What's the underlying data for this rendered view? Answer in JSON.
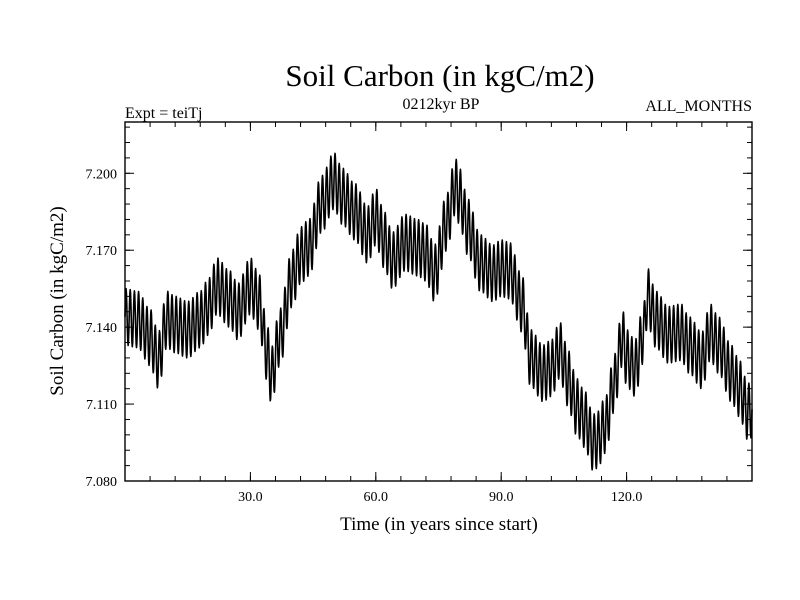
{
  "chart_data": {
    "type": "line",
    "title": "Soil Carbon (in kgC/m2)",
    "subtitle": "0212kyr BP",
    "expt_label": "Expt = teiTj",
    "months_label": "ALL_MONTHS",
    "xlabel": "Time (in years since start)",
    "ylabel": "Soil Carbon (in kgC/m2)",
    "xlim": [
      0,
      150
    ],
    "ylim": [
      7.08,
      7.22
    ],
    "x_ticks": [
      {
        "value": 30,
        "label": "30.0"
      },
      {
        "value": 60,
        "label": "60.0"
      },
      {
        "value": 90,
        "label": "90.0"
      },
      {
        "value": 120,
        "label": "120.0"
      }
    ],
    "y_ticks": [
      {
        "value": 7.08,
        "label": "7.080"
      },
      {
        "value": 7.11,
        "label": "7.110"
      },
      {
        "value": 7.14,
        "label": "7.140"
      },
      {
        "value": 7.17,
        "label": "7.170"
      },
      {
        "value": 7.2,
        "label": "7.200"
      }
    ],
    "line_color": "#000000",
    "seasonal_cycle": {
      "period_years": 1,
      "amplitude": 0.011
    },
    "series": [
      {
        "x": [
          0,
          3,
          6,
          8,
          10,
          12,
          15,
          18,
          20,
          22,
          25,
          27,
          30,
          32,
          34,
          35,
          37,
          40,
          42,
          44,
          47,
          50,
          52,
          55,
          58,
          60,
          62,
          64,
          67,
          70,
          72,
          74,
          77,
          79,
          80,
          82,
          85,
          88,
          90,
          92,
          95,
          97,
          100,
          102,
          104,
          106,
          108,
          110,
          112,
          113,
          115,
          117,
          119,
          120,
          122,
          124,
          125,
          127,
          130,
          133,
          135,
          138,
          140,
          142,
          145,
          147,
          149,
          150
        ],
        "y": [
          7.144,
          7.143,
          7.136,
          7.127,
          7.143,
          7.141,
          7.139,
          7.143,
          7.148,
          7.156,
          7.151,
          7.146,
          7.156,
          7.15,
          7.13,
          7.121,
          7.136,
          7.159,
          7.168,
          7.171,
          7.188,
          7.197,
          7.191,
          7.185,
          7.176,
          7.183,
          7.174,
          7.166,
          7.173,
          7.171,
          7.169,
          7.161,
          7.181,
          7.195,
          7.191,
          7.179,
          7.165,
          7.161,
          7.163,
          7.162,
          7.149,
          7.128,
          7.122,
          7.124,
          7.131,
          7.12,
          7.109,
          7.104,
          7.095,
          7.096,
          7.102,
          7.118,
          7.136,
          7.128,
          7.124,
          7.137,
          7.152,
          7.143,
          7.137,
          7.138,
          7.133,
          7.127,
          7.138,
          7.133,
          7.122,
          7.116,
          7.107,
          7.108
        ]
      }
    ]
  }
}
